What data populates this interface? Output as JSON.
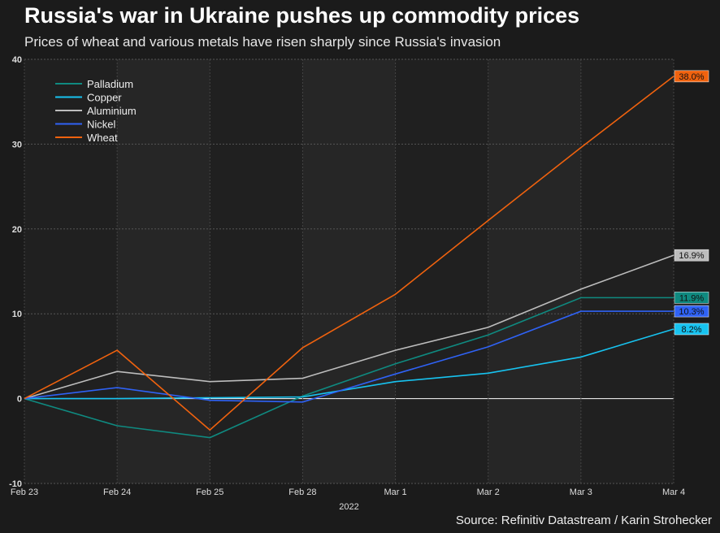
{
  "title": "Russia's war in Ukraine pushes up commodity prices",
  "subtitle": "Prices of wheat and various metals have risen sharply since Russia's invasion",
  "source": "Source: Refinitiv Datastream / Karin Strohecker",
  "chart_data": {
    "type": "line",
    "categories": [
      "Feb 23",
      "Feb 24",
      "Feb 25",
      "Feb 28",
      "Mar 1",
      "Mar 2",
      "Mar 3",
      "Mar 4"
    ],
    "xlabel": "2022",
    "ylabel": "",
    "ylim": [
      -10,
      40
    ],
    "yticks": [
      -10,
      0,
      10,
      20,
      30,
      40
    ],
    "grid": true,
    "legend": "top-left",
    "series": [
      {
        "name": "Palladium",
        "color": "#0f8a80",
        "values": [
          0,
          -3.2,
          -4.6,
          0.3,
          4.1,
          7.5,
          11.9,
          11.9
        ],
        "end_label": "11.9%"
      },
      {
        "name": "Copper",
        "color": "#17c3f0",
        "values": [
          0,
          0,
          0.1,
          0.2,
          2.0,
          3.0,
          4.9,
          8.2
        ],
        "end_label": "8.2%"
      },
      {
        "name": "Aluminium",
        "color": "#bdbdbd",
        "values": [
          0,
          3.2,
          2.0,
          2.4,
          5.7,
          8.4,
          12.9,
          16.9
        ],
        "end_label": "16.9%"
      },
      {
        "name": "Nickel",
        "color": "#2f62f5",
        "values": [
          0,
          1.3,
          -0.2,
          -0.4,
          2.9,
          6.1,
          10.3,
          10.3
        ],
        "end_label": "10.3%"
      },
      {
        "name": "Wheat",
        "color": "#f0620e",
        "values": [
          0,
          5.7,
          -3.7,
          6.0,
          12.3,
          21.0,
          29.6,
          38.0
        ],
        "end_label": "38.0%"
      }
    ]
  }
}
